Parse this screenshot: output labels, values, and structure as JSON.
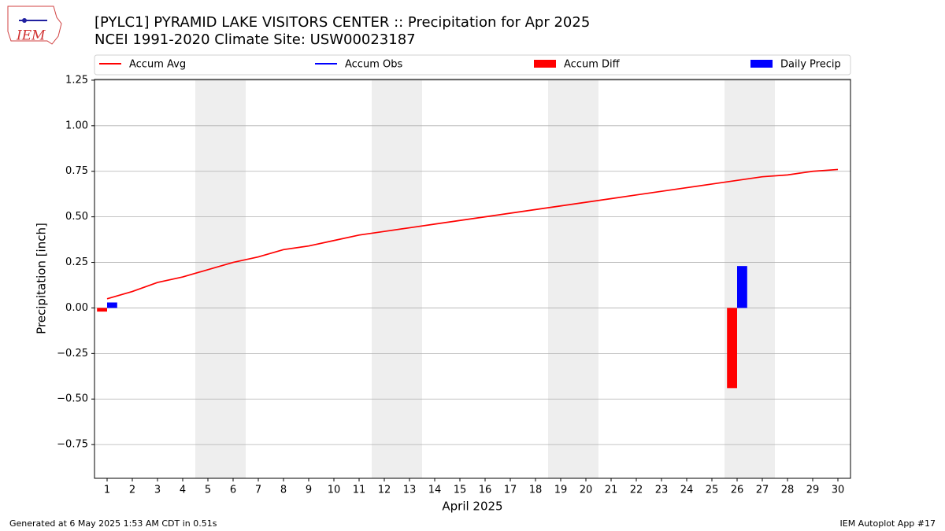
{
  "chart_data": {
    "type": "line",
    "title": "[PYLC1] PYRAMID LAKE VISITORS CENTER :: Precipitation for Apr 2025",
    "subtitle": "NCEI 1991-2020 Climate Site: USW00023187",
    "x_label": "April 2025",
    "y_label": "Precipitation [inch]",
    "x": [
      1,
      2,
      3,
      4,
      5,
      6,
      7,
      8,
      9,
      10,
      11,
      12,
      13,
      14,
      15,
      16,
      17,
      18,
      19,
      20,
      21,
      22,
      23,
      24,
      25,
      26,
      27,
      28,
      29,
      30
    ],
    "xticks": [
      1,
      2,
      3,
      4,
      5,
      6,
      7,
      8,
      9,
      10,
      11,
      12,
      13,
      14,
      15,
      16,
      17,
      18,
      19,
      20,
      21,
      22,
      23,
      24,
      25,
      26,
      27,
      28,
      29,
      30
    ],
    "xlim": [
      0.5,
      30.5
    ],
    "ylim": [
      -0.935,
      1.254
    ],
    "yticks": [
      {
        "value": -0.75,
        "label": "−0.75"
      },
      {
        "value": -0.5,
        "label": "−0.50"
      },
      {
        "value": -0.25,
        "label": "−0.25"
      },
      {
        "value": 0,
        "label": "0.00"
      },
      {
        "value": 0.25,
        "label": "0.25"
      },
      {
        "value": 0.5,
        "label": "0.50"
      },
      {
        "value": 0.75,
        "label": "0.75"
      },
      {
        "value": 1,
        "label": "1.00"
      },
      {
        "value": 1.25,
        "label": "1.25"
      }
    ],
    "grid": true,
    "weekend_shading": [
      [
        4.5,
        6.5
      ],
      [
        11.5,
        13.5
      ],
      [
        18.5,
        20.5
      ],
      [
        25.5,
        27.5
      ]
    ],
    "series": [
      {
        "name": "Accum Avg",
        "type": "line",
        "color": "#ff0000",
        "values": [
          0.05,
          0.09,
          0.14,
          0.17,
          0.21,
          0.25,
          0.28,
          0.32,
          0.34,
          0.37,
          0.4,
          0.42,
          0.44,
          0.46,
          0.48,
          0.5,
          0.52,
          0.54,
          0.56,
          0.58,
          0.6,
          0.62,
          0.64,
          0.66,
          0.68,
          0.7,
          0.72,
          0.73,
          0.75,
          0.76
        ]
      },
      {
        "name": "Accum Obs",
        "type": "line",
        "color": "#0000ff",
        "values": [
          null,
          null,
          null,
          null,
          null,
          null,
          null,
          null,
          null,
          null,
          null,
          null,
          null,
          null,
          null,
          null,
          null,
          null,
          null,
          null,
          null,
          null,
          null,
          null,
          null,
          null,
          null,
          null,
          null,
          null
        ]
      },
      {
        "name": "Accum Diff",
        "type": "bar",
        "side": "left",
        "color": "#ff0000",
        "values": [
          -0.02,
          null,
          null,
          null,
          null,
          null,
          null,
          null,
          null,
          null,
          null,
          null,
          null,
          null,
          null,
          null,
          null,
          null,
          null,
          null,
          null,
          null,
          null,
          null,
          null,
          -0.44,
          null,
          null,
          null,
          null
        ]
      },
      {
        "name": "Daily Precip",
        "type": "bar",
        "side": "right",
        "color": "#0000ff",
        "values": [
          0.03,
          null,
          null,
          null,
          null,
          null,
          null,
          null,
          null,
          null,
          null,
          null,
          null,
          null,
          null,
          null,
          null,
          null,
          null,
          null,
          null,
          null,
          null,
          null,
          null,
          0.23,
          null,
          null,
          null,
          null
        ]
      }
    ]
  },
  "logo_text": "IEM",
  "footer_left": "Generated at 6 May 2025 1:53 AM CDT in 0.51s",
  "footer_right": "IEM Autoplot App #17"
}
